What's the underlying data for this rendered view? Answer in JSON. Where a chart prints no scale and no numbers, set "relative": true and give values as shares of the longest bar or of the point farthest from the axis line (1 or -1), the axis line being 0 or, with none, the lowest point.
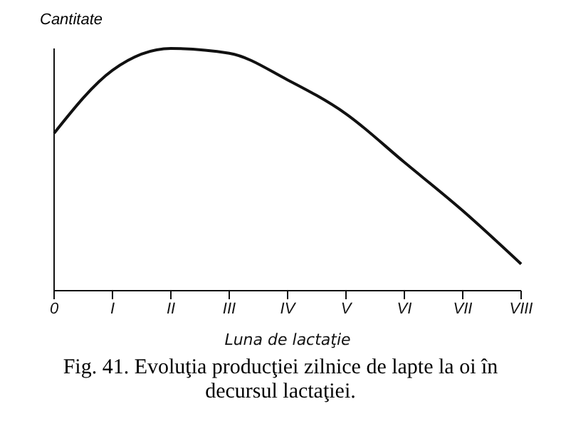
{
  "chart_data": {
    "type": "line",
    "relative": true,
    "ylabel": "Cantitate",
    "xlabel": "Luna de lactaţie",
    "categories": [
      "0",
      "I",
      "II",
      "III",
      "IV",
      "V",
      "VI",
      "VII",
      "VIII"
    ],
    "series": [
      {
        "color": "#111111",
        "values": [
          0.65,
          0.91,
          1.0,
          0.98,
          0.87,
          0.73,
          0.53,
          0.33,
          0.11
        ]
      }
    ],
    "marker": "none",
    "line_style": "solid",
    "grid": false,
    "legend": false,
    "annotations": [
      "Fig. 41. Evoluţia producţiei zilnice de lapte la oi în decursul lactaţiei."
    ]
  }
}
